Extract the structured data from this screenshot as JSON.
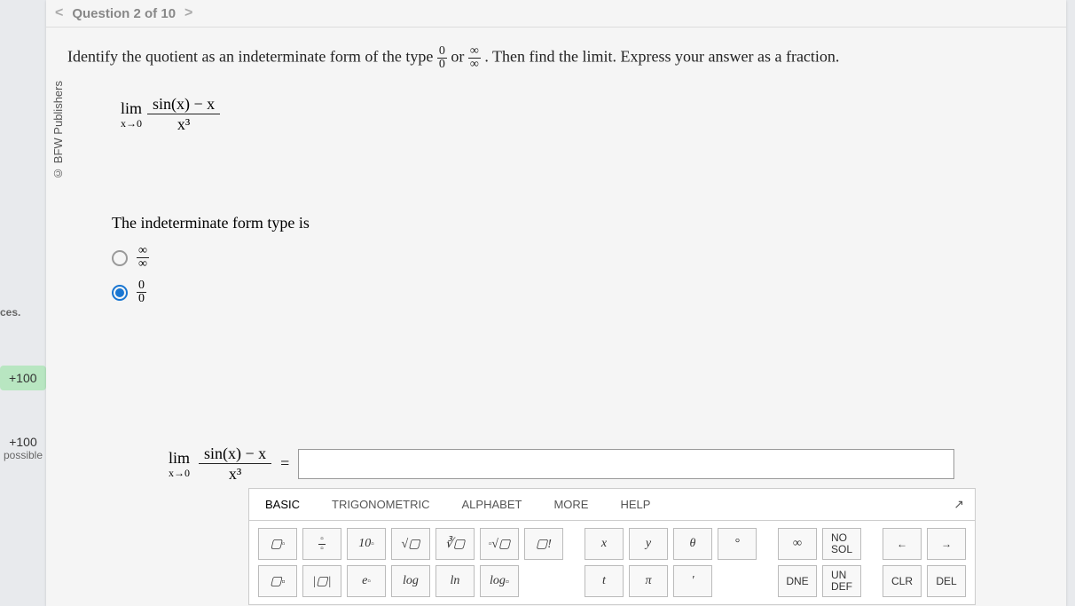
{
  "nav": {
    "prev_chevron": "<",
    "title": "Question 2 of 10",
    "next_chevron": ">"
  },
  "copyright": "© BFW Publishers",
  "left_rail": {
    "fragment_text": "ces.",
    "badge": "+100",
    "possible_plus": "+100",
    "possible_label": "possible"
  },
  "prompt": {
    "text_a": "Identify the quotient as an indeterminate form of the type ",
    "frac1_num": "0",
    "frac1_den": "0",
    "text_b": " or ",
    "frac2_num": "∞",
    "frac2_den": "∞",
    "text_c": ". Then find the limit. Express your answer as a fraction."
  },
  "limit": {
    "lim_label": "lim",
    "lim_sub": "x→0",
    "num": "sin(x) − x",
    "den": "x³"
  },
  "form_question": "The indeterminate form type is",
  "radio_options": {
    "opt1_num": "∞",
    "opt1_den": "∞",
    "opt1_selected": false,
    "opt2_num": "0",
    "opt2_den": "0",
    "opt2_selected": true
  },
  "answer_row": {
    "equals": "=",
    "input_value": "",
    "input_placeholder": ""
  },
  "keypad": {
    "tabs": [
      "BASIC",
      "TRIGONOMETRIC",
      "ALPHABET",
      "MORE",
      "HELP"
    ],
    "active_tab": "BASIC",
    "collapse_icon": "↗",
    "row1": {
      "b1": "▢▫",
      "b2_n": "▫",
      "b2_d": "▫",
      "b3": "10▫",
      "b4": "√▢",
      "b5": "∛▢",
      "b6": "▫√▢",
      "b7": "▢!",
      "b8": "x",
      "b9": "y",
      "b10": "θ",
      "b11": "°",
      "b12": "∞",
      "b13": "NO SOL",
      "b14": "←",
      "b15": "→"
    },
    "row2": {
      "b1": "▢▫",
      "b2": "|▢|",
      "b3": "e▫",
      "b4": "log",
      "b5": "ln",
      "b6": "log▫",
      "b7": "t",
      "b8": "π",
      "b9": "'",
      "b10": "DNE",
      "b11": "UN DEF",
      "b12": "CLR",
      "b13": "DEL"
    }
  },
  "colors": {
    "page_bg": "#e8eaed",
    "card_bg": "#f5f5f5",
    "accent": "#1976d2",
    "badge_bg": "#b8e6c1",
    "border": "#bbbbbb"
  }
}
